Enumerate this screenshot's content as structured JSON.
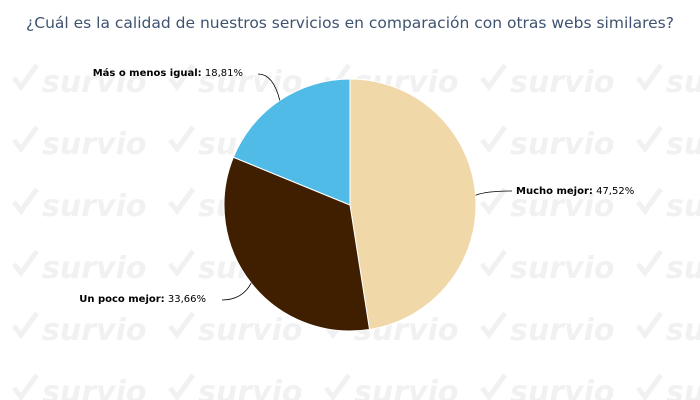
{
  "watermark": {
    "text": "survio",
    "color": "#f1f1f1"
  },
  "chart_data": {
    "type": "pie",
    "title": "¿Cuál es la calidad de nuestros servicios en comparación con otras webs similares?",
    "slices": [
      {
        "label": "Mucho mejor:",
        "value": 47.52,
        "value_label": "47,52%",
        "color": "#f0d8a8"
      },
      {
        "label": "Un poco mejor:",
        "value": 33.66,
        "value_label": "33,66%",
        "color": "#3f1f00"
      },
      {
        "label": "Más o menos igual:",
        "value": 18.81,
        "value_label": "18,81%",
        "color": "#50bbe6"
      }
    ],
    "start_angle": "12 o'clock",
    "direction": "clockwise",
    "slice_border": "#ffffff"
  }
}
